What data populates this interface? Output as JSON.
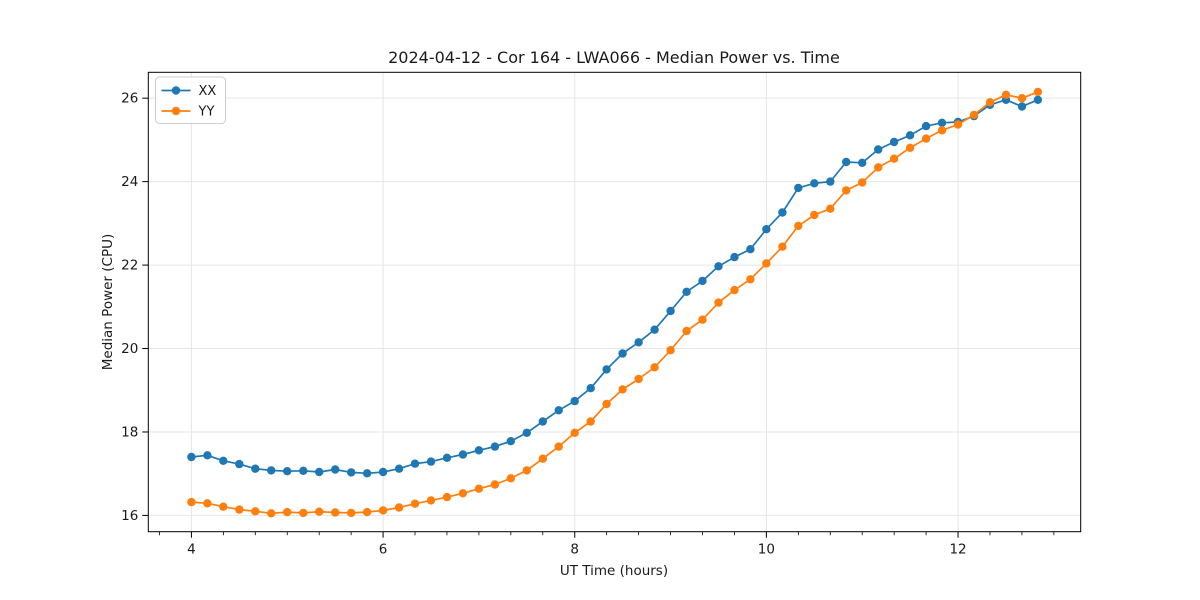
{
  "figure": {
    "background": "#ffffff",
    "text_color": "#1a1a1a"
  },
  "chart_data": {
    "type": "line",
    "title": "2024-04-12 - Cor 164 - LWA066 - Median Power vs. Time",
    "xlabel": "UT Time (hours)",
    "ylabel": "Median Power (CPU)",
    "grid": true,
    "grid_color": "#e6e6e6",
    "legend_position": "upper left",
    "legend_labels": [
      "XX",
      "YY"
    ],
    "marker": "circle",
    "xlim": [
      3.55,
      13.28
    ],
    "ylim": [
      15.61,
      26.62
    ],
    "x_major_ticks": [
      4,
      6,
      8,
      10,
      12
    ],
    "x_minor_tick_step_hours": 0.3333,
    "y_major_ticks": [
      16,
      18,
      20,
      22,
      24,
      26
    ],
    "x": [
      4.0,
      4.167,
      4.333,
      4.5,
      4.667,
      4.833,
      5.0,
      5.167,
      5.333,
      5.5,
      5.667,
      5.833,
      6.0,
      6.167,
      6.333,
      6.5,
      6.667,
      6.833,
      7.0,
      7.167,
      7.333,
      7.5,
      7.667,
      7.833,
      8.0,
      8.167,
      8.333,
      8.5,
      8.667,
      8.833,
      9.0,
      9.167,
      9.333,
      9.5,
      9.667,
      9.833,
      10.0,
      10.167,
      10.333,
      10.5,
      10.667,
      10.833,
      11.0,
      11.167,
      11.333,
      11.5,
      11.667,
      11.833,
      12.0,
      12.167,
      12.333,
      12.5,
      12.667,
      12.833
    ],
    "series": [
      {
        "name": "XX",
        "color": "#1f77b4",
        "values": [
          17.4,
          17.44,
          17.31,
          17.23,
          17.12,
          17.08,
          17.06,
          17.07,
          17.04,
          17.1,
          17.03,
          17.01,
          17.04,
          17.12,
          17.24,
          17.29,
          17.38,
          17.46,
          17.56,
          17.65,
          17.78,
          17.98,
          18.25,
          18.52,
          18.74,
          19.05,
          19.5,
          19.88,
          20.15,
          20.45,
          20.9,
          21.36,
          21.62,
          21.97,
          22.19,
          22.38,
          22.86,
          23.26,
          23.85,
          23.96,
          24.0,
          24.47,
          24.45,
          24.77,
          24.95,
          25.11,
          25.33,
          25.41,
          25.43,
          25.57,
          25.84,
          25.96,
          25.8,
          25.96
        ]
      },
      {
        "name": "YY",
        "color": "#ff7f0e",
        "values": [
          16.32,
          16.29,
          16.21,
          16.14,
          16.1,
          16.05,
          16.08,
          16.06,
          16.09,
          16.07,
          16.06,
          16.08,
          16.12,
          16.19,
          16.28,
          16.36,
          16.44,
          16.53,
          16.64,
          16.74,
          16.89,
          17.08,
          17.36,
          17.65,
          17.98,
          18.25,
          18.67,
          19.02,
          19.27,
          19.55,
          19.96,
          20.42,
          20.69,
          21.1,
          21.4,
          21.66,
          22.04,
          22.44,
          22.94,
          23.2,
          23.35,
          23.79,
          23.98,
          24.34,
          24.55,
          24.81,
          25.03,
          25.23,
          25.37,
          25.6,
          25.9,
          26.08,
          26.0,
          26.15
        ]
      }
    ]
  }
}
